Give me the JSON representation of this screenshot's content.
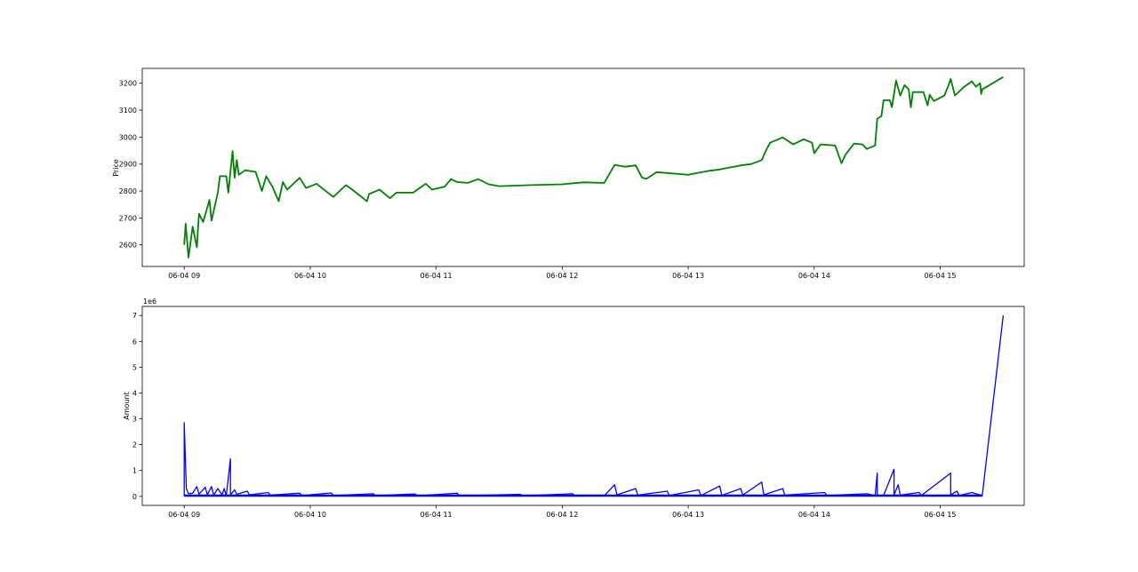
{
  "chart_data": [
    {
      "type": "line",
      "title": "",
      "xlabel": "",
      "ylabel": "Price",
      "color": "#008000",
      "x_tick_labels": [
        "06-04 09",
        "06-04 10",
        "06-04 11",
        "06-04 12",
        "06-04 13",
        "06-04 14",
        "06-04 15"
      ],
      "y_ticks": [
        2600,
        2700,
        2800,
        2900,
        3000,
        3100,
        3200
      ],
      "ylim": [
        2520,
        3255
      ],
      "xlim": [
        "08:40",
        "15:40"
      ],
      "grid": false,
      "points": [
        [
          "09:00",
          2600
        ],
        [
          "09:00:40",
          2679
        ],
        [
          "09:02",
          2553
        ],
        [
          "09:04",
          2668
        ],
        [
          "09:06",
          2591
        ],
        [
          "09:07",
          2715
        ],
        [
          "09:09",
          2685
        ],
        [
          "09:12",
          2767
        ],
        [
          "09:13",
          2690
        ],
        [
          "09:16",
          2794
        ],
        [
          "09:17",
          2855
        ],
        [
          "09:20",
          2855
        ],
        [
          "09:21",
          2794
        ],
        [
          "09:23",
          2948
        ],
        [
          "09:24",
          2849
        ],
        [
          "09:25",
          2915
        ],
        [
          "09:26",
          2860
        ],
        [
          "09:29",
          2877
        ],
        [
          "09:34",
          2871
        ],
        [
          "09:37",
          2800
        ],
        [
          "09:39",
          2855
        ],
        [
          "09:42",
          2816
        ],
        [
          "09:45",
          2762
        ],
        [
          "09:47",
          2833
        ],
        [
          "09:49",
          2805
        ],
        [
          "09:55",
          2849
        ],
        [
          "09:58",
          2811
        ],
        [
          "10:03",
          2827
        ],
        [
          "10:11",
          2778
        ],
        [
          "10:17",
          2822
        ],
        [
          "10:20",
          2805
        ],
        [
          "10:27",
          2762
        ],
        [
          "10:28",
          2789
        ],
        [
          "10:33",
          2805
        ],
        [
          "10:38",
          2773
        ],
        [
          "10:41",
          2794
        ],
        [
          "10:49",
          2794
        ],
        [
          "10:55",
          2827
        ],
        [
          "10:58",
          2805
        ],
        [
          "11:04",
          2816
        ],
        [
          "11:07",
          2844
        ],
        [
          "11:10",
          2833
        ],
        [
          "11:15",
          2830
        ],
        [
          "11:20",
          2844
        ],
        [
          "11:25",
          2825
        ],
        [
          "11:30",
          2818
        ],
        [
          "11:45",
          2822
        ],
        [
          "12:00",
          2825
        ],
        [
          "12:10",
          2832
        ],
        [
          "12:20",
          2830
        ],
        [
          "12:25",
          2897
        ],
        [
          "12:30",
          2890
        ],
        [
          "12:35",
          2895
        ],
        [
          "12:38",
          2850
        ],
        [
          "12:40",
          2845
        ],
        [
          "12:45",
          2870
        ],
        [
          "13:00",
          2860
        ],
        [
          "13:10",
          2875
        ],
        [
          "13:15",
          2880
        ],
        [
          "13:25",
          2895
        ],
        [
          "13:30",
          2900
        ],
        [
          "13:35",
          2915
        ],
        [
          "13:37",
          2950
        ],
        [
          "13:39",
          2979
        ],
        [
          "13:45",
          2999
        ],
        [
          "13:50",
          2973
        ],
        [
          "13:55",
          2992
        ],
        [
          "13:59",
          2979
        ],
        [
          "14:00",
          2940
        ],
        [
          "14:03",
          2973
        ],
        [
          "14:10",
          2969
        ],
        [
          "14:13",
          2903
        ],
        [
          "14:15",
          2936
        ],
        [
          "14:19",
          2976
        ],
        [
          "14:23",
          2973
        ],
        [
          "14:25",
          2956
        ],
        [
          "14:29",
          2969
        ],
        [
          "14:30",
          3068
        ],
        [
          "14:32",
          3078
        ],
        [
          "14:33",
          3137
        ],
        [
          "14:36",
          3137
        ],
        [
          "14:37",
          3111
        ],
        [
          "14:39",
          3210
        ],
        [
          "14:41",
          3154
        ],
        [
          "14:43",
          3193
        ],
        [
          "14:45",
          3177
        ],
        [
          "14:46",
          3111
        ],
        [
          "14:47",
          3167
        ],
        [
          "14:52",
          3167
        ],
        [
          "14:54",
          3118
        ],
        [
          "14:55",
          3157
        ],
        [
          "14:57",
          3134
        ],
        [
          "15:02",
          3154
        ],
        [
          "15:04",
          3193
        ],
        [
          "15:05",
          3216
        ],
        [
          "15:07",
          3154
        ],
        [
          "15:11",
          3184
        ],
        [
          "15:15",
          3207
        ],
        [
          "15:17",
          3187
        ],
        [
          "15:19",
          3200
        ],
        [
          "15:19:30",
          3160
        ],
        [
          "15:20",
          3177
        ],
        [
          "15:30",
          3223
        ]
      ]
    },
    {
      "type": "line",
      "title": "",
      "xlabel": "",
      "ylabel": "Amount",
      "y_offset_label": "1e6",
      "color": "#0000ff",
      "x_tick_labels": [
        "06-04 09",
        "06-04 10",
        "06-04 11",
        "06-04 12",
        "06-04 13",
        "06-04 14",
        "06-04 15"
      ],
      "y_tick_labels": [
        "0",
        "1",
        "2",
        "3",
        "4",
        "5",
        "6",
        "7"
      ],
      "y_ticks": [
        0,
        1000000,
        2000000,
        3000000,
        4000000,
        5000000,
        6000000,
        7000000
      ],
      "ylim": [
        -350000,
        7350000
      ],
      "xlim": [
        "08:40",
        "15:40"
      ],
      "grid": false,
      "points": [
        [
          "09:00",
          0
        ],
        [
          "09:00",
          2850000
        ],
        [
          "09:01",
          300000
        ],
        [
          "09:02",
          100000
        ],
        [
          "09:04",
          120000
        ],
        [
          "09:06",
          380000
        ],
        [
          "09:07",
          80000
        ],
        [
          "09:10",
          350000
        ],
        [
          "09:11",
          60000
        ],
        [
          "09:13",
          380000
        ],
        [
          "09:14",
          50000
        ],
        [
          "09:16",
          300000
        ],
        [
          "09:18",
          60000
        ],
        [
          "09:19",
          300000
        ],
        [
          "09:20",
          20000
        ],
        [
          "09:22",
          1450000
        ],
        [
          "09:22",
          60000
        ],
        [
          "09:24",
          250000
        ],
        [
          "09:25",
          80000
        ],
        [
          "09:30",
          200000
        ],
        [
          "09:31",
          60000
        ],
        [
          "09:40",
          150000
        ],
        [
          "09:41",
          50000
        ],
        [
          "09:55",
          120000
        ],
        [
          "09:56",
          30000
        ],
        [
          "10:10",
          130000
        ],
        [
          "10:11",
          30000
        ],
        [
          "10:30",
          100000
        ],
        [
          "10:31",
          30000
        ],
        [
          "10:50",
          90000
        ],
        [
          "10:51",
          20000
        ],
        [
          "11:10",
          120000
        ],
        [
          "11:11",
          20000
        ],
        [
          "11:40",
          80000
        ],
        [
          "11:41",
          20000
        ],
        [
          "12:05",
          100000
        ],
        [
          "12:06",
          10000
        ],
        [
          "12:20",
          20000
        ],
        [
          "12:25",
          450000
        ],
        [
          "12:26",
          60000
        ],
        [
          "12:35",
          300000
        ],
        [
          "12:36",
          50000
        ],
        [
          "12:50",
          200000
        ],
        [
          "12:51",
          30000
        ],
        [
          "13:05",
          250000
        ],
        [
          "13:06",
          30000
        ],
        [
          "13:15",
          400000
        ],
        [
          "13:16",
          40000
        ],
        [
          "13:25",
          300000
        ],
        [
          "13:26",
          50000
        ],
        [
          "13:35",
          550000
        ],
        [
          "13:36",
          60000
        ],
        [
          "13:45",
          300000
        ],
        [
          "13:46",
          50000
        ],
        [
          "14:05",
          150000
        ],
        [
          "14:06",
          30000
        ],
        [
          "14:25",
          100000
        ],
        [
          "14:29",
          30000
        ],
        [
          "14:30",
          900000
        ],
        [
          "14:30",
          30000
        ],
        [
          "14:33",
          30000
        ],
        [
          "14:38",
          1050000
        ],
        [
          "14:38",
          60000
        ],
        [
          "14:40",
          450000
        ],
        [
          "14:41",
          50000
        ],
        [
          "14:50",
          150000
        ],
        [
          "14:51",
          30000
        ],
        [
          "15:05",
          900000
        ],
        [
          "15:05",
          60000
        ],
        [
          "15:08",
          200000
        ],
        [
          "15:09",
          30000
        ],
        [
          "15:15",
          150000
        ],
        [
          "15:20",
          30000
        ],
        [
          "15:30",
          7000000
        ]
      ]
    }
  ]
}
